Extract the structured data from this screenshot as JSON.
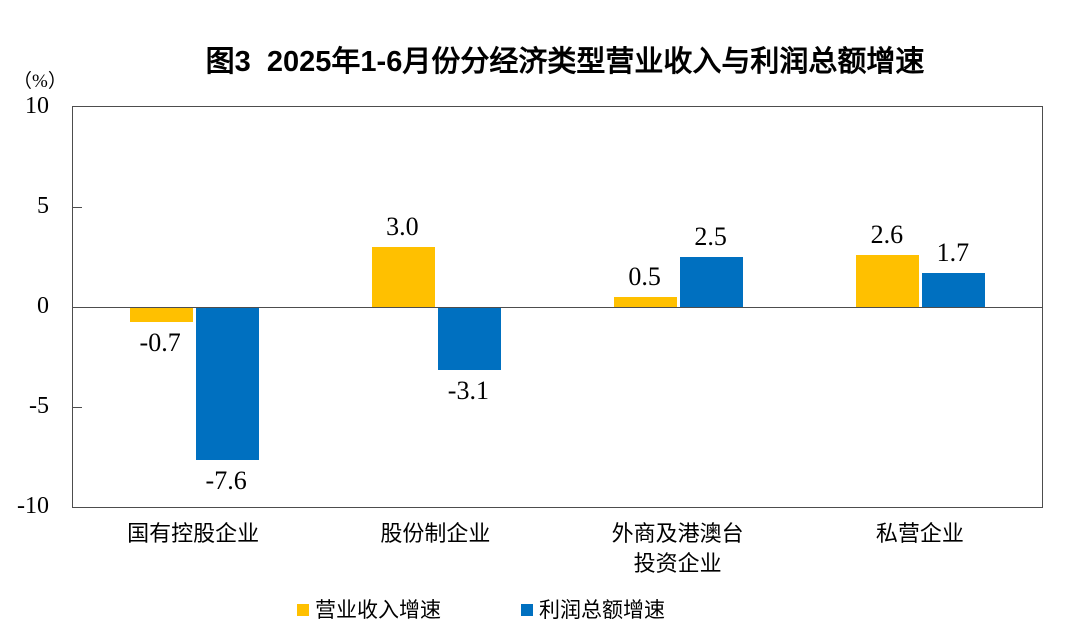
{
  "chart_data": {
    "type": "bar",
    "title": "图3  2025年1-6月份分经济类型营业收入与利润总额增速",
    "unit": "（%）",
    "categories": [
      "国有控股企业",
      "股份制企业",
      "外商及港澳台投资企业",
      "私营企业"
    ],
    "category_lines": [
      [
        "国有控股企业"
      ],
      [
        "股份制企业"
      ],
      [
        "外商及港澳台",
        "投资企业"
      ],
      [
        "私营企业"
      ]
    ],
    "series": [
      {
        "name": "营业收入增速",
        "color": "#FFC000",
        "values": [
          -0.7,
          3.0,
          0.5,
          2.6
        ]
      },
      {
        "name": "利润总额增速",
        "color": "#0070C0",
        "values": [
          -7.6,
          -3.1,
          2.5,
          1.7
        ]
      }
    ],
    "y_ticks": [
      10,
      5,
      0,
      -5,
      -10
    ],
    "ylim": [
      -10,
      10
    ],
    "grid": false,
    "legend_position": "bottom",
    "axis_color": "#4d4d4d",
    "text_color": "#000000"
  }
}
